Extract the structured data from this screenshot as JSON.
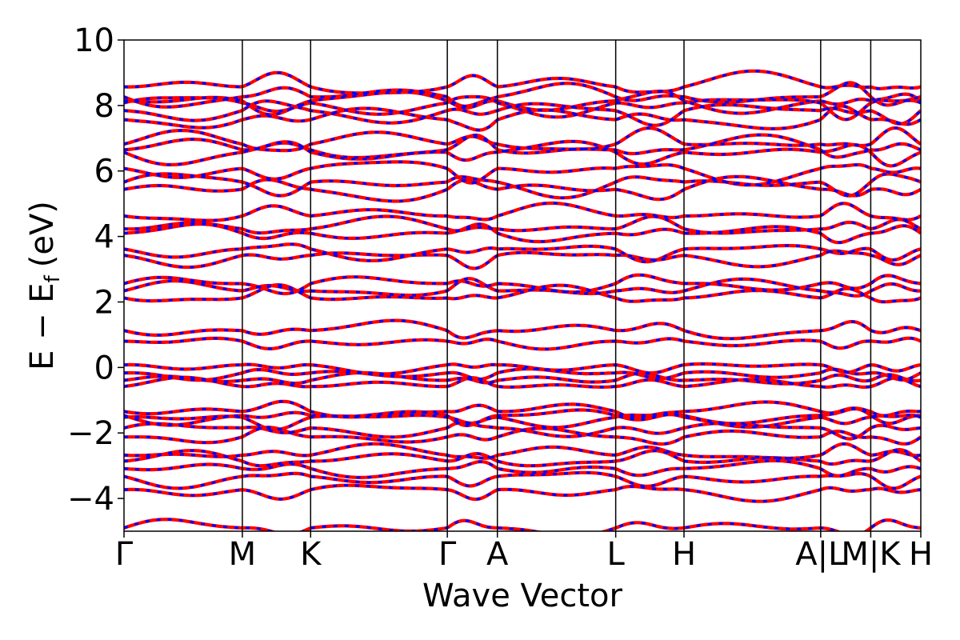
{
  "chart_data": {
    "type": "line",
    "xlabel": "Wave Vector",
    "ylabel": "E − E",
    "ylabel_sub": "f",
    "ylabel_unit": "(eV)",
    "ylim": [
      -5,
      10
    ],
    "y_ticks": [
      -4,
      -2,
      0,
      2,
      4,
      6,
      8,
      10
    ],
    "y_tick_labels": [
      "−4",
      "−2",
      "0",
      "2",
      "4",
      "6",
      "8",
      "10"
    ],
    "kpoints": [
      {
        "label": "Γ",
        "x": 0.0
      },
      {
        "label": "M",
        "x": 1.0
      },
      {
        "label": "K",
        "x": 1.577
      },
      {
        "label": "Γ",
        "x": 2.732
      },
      {
        "label": "A",
        "x": 3.155
      },
      {
        "label": "L",
        "x": 4.155
      },
      {
        "label": "H",
        "x": 4.732
      },
      {
        "label": "A|L",
        "x": 5.887
      },
      {
        "label": "M|K",
        "x": 6.31
      },
      {
        "label": "H",
        "x": 6.733
      }
    ],
    "xlim": [
      0,
      6.733
    ],
    "grid": false,
    "series": [
      {
        "color": "#ff0000",
        "style": "solid",
        "approx_band_energies_at_gamma": [
          -4.9,
          -3.8,
          -3.4,
          -3.1,
          -2.8,
          -2.6,
          -2.1,
          -1.9,
          -1.6,
          -1.5,
          -1.3,
          -0.5,
          -0.35,
          -0.2,
          0.0,
          0.75,
          1.15,
          2.2,
          2.4,
          2.55,
          3.35,
          3.55,
          4.1,
          4.3,
          4.7,
          5.45,
          5.6,
          6.0,
          6.55,
          6.7,
          6.9,
          7.6,
          7.8,
          8.0,
          8.1,
          8.3,
          8.65
        ]
      },
      {
        "color": "#0000ff",
        "style": "dashed",
        "approx_band_energies_at_gamma": [
          -4.9,
          -3.8,
          -3.4,
          -3.1,
          -2.8,
          -2.6,
          -2.1,
          -1.9,
          -1.6,
          -1.5,
          -1.3,
          -0.5,
          -0.35,
          -0.2,
          0.0,
          0.75,
          1.15,
          2.2,
          2.4,
          2.55,
          3.35,
          3.55,
          4.1,
          4.3,
          4.7,
          5.45,
          5.6,
          6.0,
          6.55,
          6.7,
          6.9,
          7.6,
          7.8,
          8.0,
          8.1,
          8.3,
          8.65
        ]
      }
    ]
  }
}
